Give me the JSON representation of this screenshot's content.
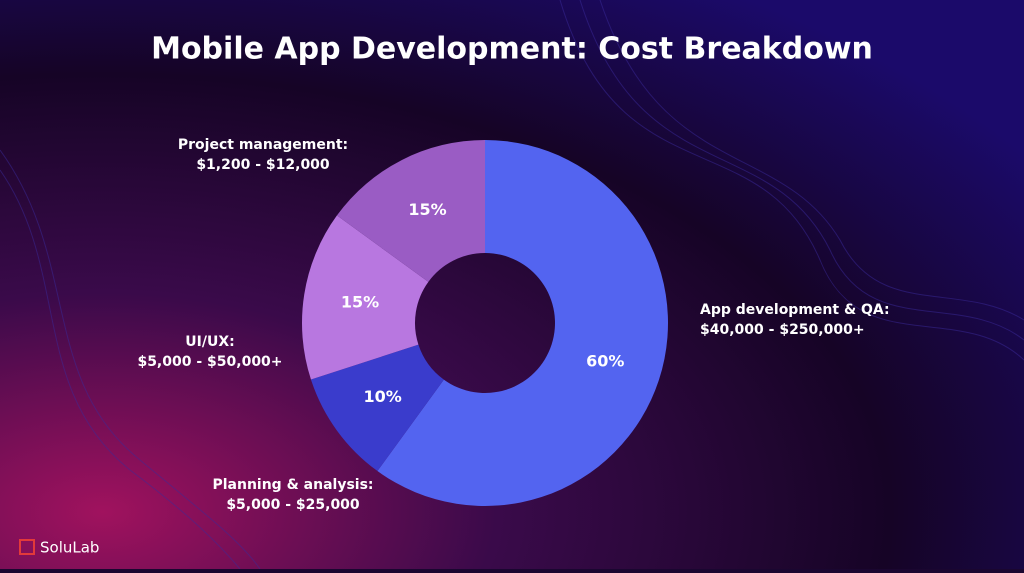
{
  "chart_data": {
    "type": "donut",
    "title": "Mobile App Development: Cost Breakdown",
    "categories": [
      "App development & QA:",
      "Planning & analysis:",
      "UI/UX:",
      "Project management:"
    ],
    "cost_ranges": [
      "$40,000 - $250,000+",
      "$5,000 - $25,000",
      "$5,000 - $50,000+",
      "$1,200 - $12,000"
    ],
    "values": [
      60,
      10,
      15,
      15
    ],
    "value_labels": [
      "60%",
      "10%",
      "15%",
      "15%"
    ],
    "colors": [
      "#5364f0",
      "#3a3ccc",
      "#b877e0",
      "#9a5cc4"
    ]
  },
  "logo": "SoluLab"
}
